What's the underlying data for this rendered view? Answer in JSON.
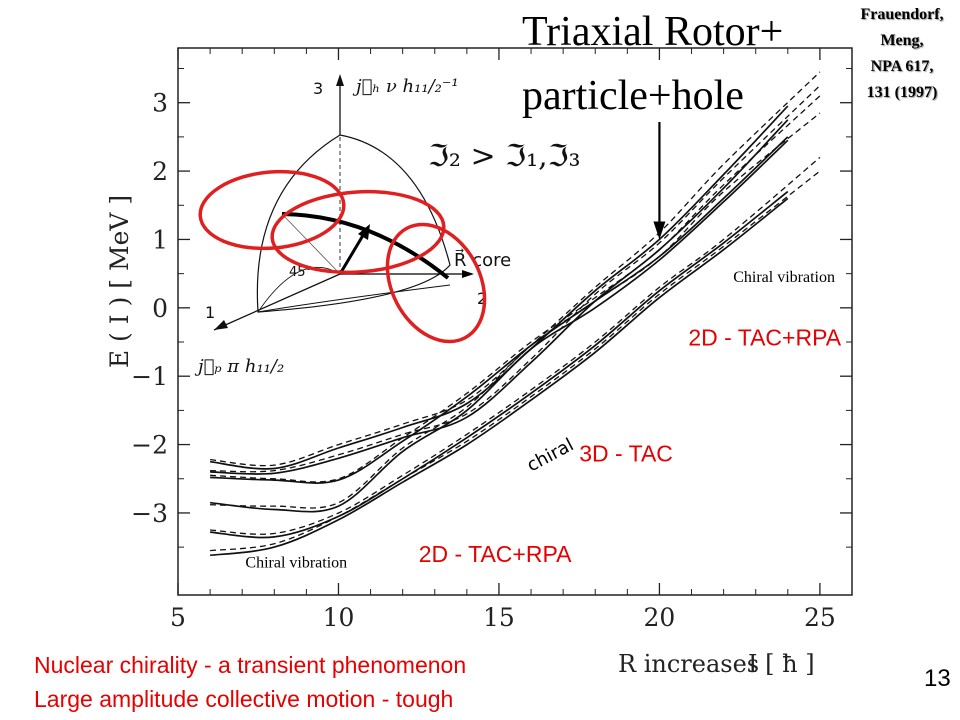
{
  "slide": {
    "title": "Triaxial Rotor+",
    "subtitle": "particle+hole",
    "reference": [
      "Frauendorf,",
      "Meng,",
      "NPA 617,",
      "131 (1997)"
    ],
    "footer_lines": [
      "Nuclear chirality - a transient phenomenon",
      "Large amplitude collective motion - tough"
    ],
    "page_number": "13",
    "accent_color": "#e60000",
    "ellipse_color": "#e02020"
  },
  "chart_data": {
    "type": "line",
    "ylabel": "E ( I ) [ MeV ]",
    "xlabel": "I [ ħ ]",
    "xlabel_prefix": "R increases",
    "xlim": [
      5,
      26
    ],
    "ylim": [
      -4.2,
      3.8
    ],
    "xticks": [
      5,
      10,
      15,
      20,
      25
    ],
    "xtick_labels": [
      "5",
      "10",
      "15",
      "20",
      "25"
    ],
    "yticks": [
      -3,
      -2,
      -1,
      0,
      1,
      2,
      3
    ],
    "ytick_labels": [
      "−3",
      "−2",
      "−1",
      "0",
      "1",
      "2",
      "3"
    ],
    "grid": false,
    "series": [
      {
        "style": "solid",
        "x": [
          6,
          8,
          10,
          12,
          14,
          16,
          18,
          20,
          22,
          24
        ],
        "y": [
          -3.62,
          -3.5,
          -3.1,
          -2.55,
          -2.0,
          -1.35,
          -0.65,
          0.15,
          0.85,
          1.6
        ]
      },
      {
        "style": "solid",
        "x": [
          6,
          8,
          10,
          12,
          14,
          16,
          18,
          20,
          22,
          24
        ],
        "y": [
          -3.28,
          -3.35,
          -3.05,
          -2.5,
          -1.9,
          -1.25,
          -0.55,
          0.25,
          0.95,
          1.7
        ]
      },
      {
        "style": "solid",
        "x": [
          6,
          8,
          10,
          12,
          14,
          16,
          18,
          20,
          22,
          24
        ],
        "y": [
          -2.85,
          -2.95,
          -2.9,
          -2.1,
          -1.5,
          -0.6,
          0.0,
          0.7,
          1.55,
          2.45
        ]
      },
      {
        "style": "solid",
        "x": [
          6,
          8,
          10,
          12,
          14,
          16,
          18,
          20,
          22,
          24
        ],
        "y": [
          -2.48,
          -2.52,
          -2.52,
          -1.95,
          -1.3,
          -0.55,
          0.1,
          0.75,
          1.6,
          2.5
        ]
      },
      {
        "style": "solid",
        "x": [
          6,
          8,
          10,
          12,
          14,
          16,
          18,
          20,
          22,
          24
        ],
        "y": [
          -2.4,
          -2.42,
          -2.2,
          -1.9,
          -1.6,
          -0.8,
          0.1,
          0.85,
          1.75,
          2.75
        ]
      },
      {
        "style": "solid",
        "x": [
          6,
          8,
          10,
          12,
          14,
          16,
          18,
          20,
          22,
          24
        ],
        "y": [
          -2.25,
          -2.35,
          -2.05,
          -1.75,
          -1.4,
          -0.6,
          0.25,
          1.0,
          1.95,
          2.95
        ]
      },
      {
        "style": "dashed",
        "x": [
          6,
          8,
          10,
          12,
          14,
          16,
          18,
          20,
          22,
          25
        ],
        "y": [
          -3.55,
          -3.45,
          -3.05,
          -2.5,
          -1.95,
          -1.3,
          -0.6,
          0.2,
          0.9,
          2.0
        ]
      },
      {
        "style": "dashed",
        "x": [
          6,
          8,
          10,
          12,
          14,
          16,
          18,
          20,
          22,
          25
        ],
        "y": [
          -3.25,
          -3.3,
          -3.0,
          -2.45,
          -1.85,
          -1.2,
          -0.5,
          0.3,
          1.0,
          2.2
        ]
      },
      {
        "style": "dashed",
        "x": [
          6,
          8,
          10,
          12,
          14,
          16,
          18,
          20,
          22,
          25
        ],
        "y": [
          -2.88,
          -2.9,
          -2.85,
          -2.05,
          -1.45,
          -0.55,
          0.1,
          0.75,
          1.7,
          2.85
        ]
      },
      {
        "style": "dashed",
        "x": [
          6,
          8,
          10,
          12,
          14,
          16,
          18,
          20,
          22,
          25
        ],
        "y": [
          -2.45,
          -2.5,
          -2.5,
          -1.9,
          -1.25,
          -0.5,
          0.15,
          0.85,
          1.8,
          3.1
        ]
      },
      {
        "style": "dashed",
        "x": [
          6,
          8,
          10,
          12,
          14,
          16,
          18,
          20,
          22,
          25
        ],
        "y": [
          -2.38,
          -2.38,
          -2.15,
          -1.85,
          -1.55,
          -0.75,
          0.2,
          0.95,
          1.9,
          3.25
        ]
      },
      {
        "style": "dashed",
        "x": [
          6,
          8,
          10,
          12,
          14,
          16,
          18,
          20,
          22,
          25
        ],
        "y": [
          -2.22,
          -2.3,
          -2.0,
          -1.7,
          -1.35,
          -0.55,
          0.3,
          1.1,
          2.1,
          3.45
        ]
      }
    ],
    "annotations": [
      {
        "text": "Chiral vibration",
        "x": 7.1,
        "y": -3.8,
        "color": "#000000",
        "size": 16
      },
      {
        "text": "2D - TAC+RPA",
        "x": 12.5,
        "y": -3.72,
        "color": "#e60000",
        "size": 23
      },
      {
        "text": "3D - TAC",
        "x": 17.5,
        "y": -2.25,
        "color": "#e60000",
        "size": 23
      },
      {
        "text": "2D - TAC+RPA",
        "x": 20.9,
        "y": -0.55,
        "color": "#e60000",
        "size": 23
      },
      {
        "text": "Chiral vibration",
        "x": 22.3,
        "y": 0.38,
        "color": "#000000",
        "size": 16
      },
      {
        "text": "chiral",
        "x": 16.0,
        "y": -2.4,
        "color": "#000000",
        "size": 18,
        "rotate": -28
      }
    ],
    "arrow_target": [
      20.0,
      1.0
    ],
    "inset": {
      "formula_left": "ℑ₂ > ℑ₁,ℑ₃",
      "axis_labels": [
        "3",
        "1",
        "2"
      ],
      "jh_label": "j⃗ₕ ν h₁₁/₂⁻¹",
      "jp_label": "j⃗ₚ π h₁₁/₂",
      "core_label": "R⃗ core",
      "angle_label": "45°"
    }
  }
}
